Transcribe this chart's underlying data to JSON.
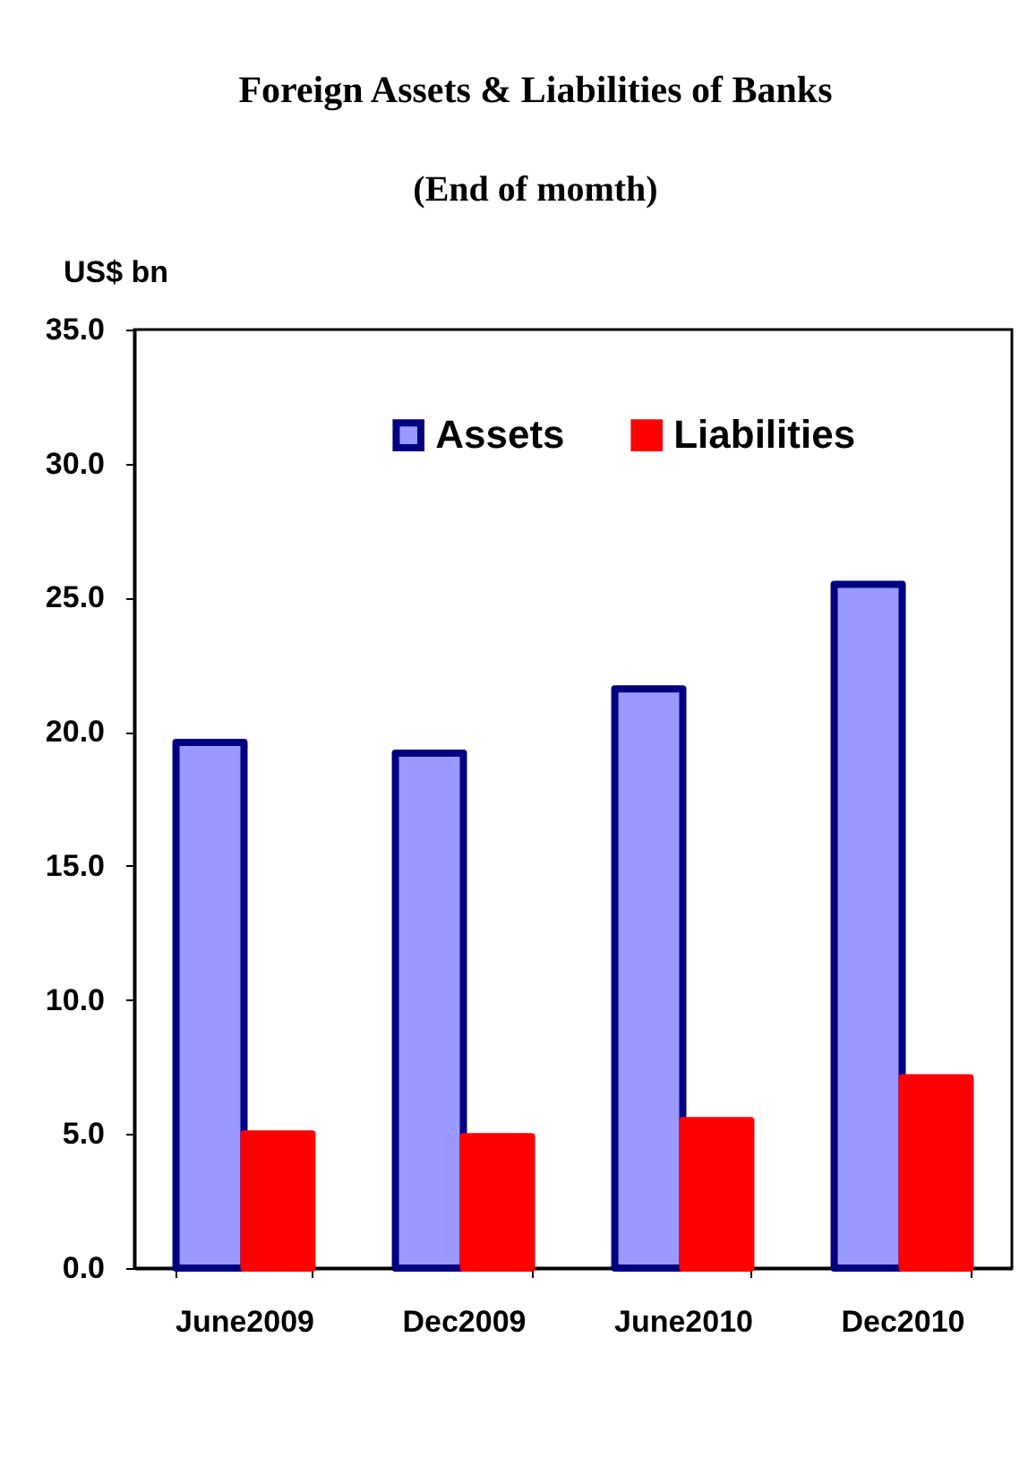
{
  "chart_data": {
    "type": "bar",
    "title": "Foreign Assets & Liabilities of Banks",
    "subtitle": "(End of momth)",
    "ylabel": "US$ bn",
    "categories": [
      "June2009",
      "Dec2009",
      "June2010",
      "Dec2010"
    ],
    "series": [
      {
        "name": "Assets",
        "color": "#9999ff",
        "values": [
          19.6,
          19.2,
          21.6,
          25.5
        ]
      },
      {
        "name": "Liabilities",
        "color": "#ff0000",
        "values": [
          5.0,
          4.9,
          5.5,
          7.1
        ]
      }
    ],
    "ylim": [
      0,
      35
    ],
    "yticks": [
      {
        "value": 0,
        "label": "0.0"
      },
      {
        "value": 5,
        "label": "5.0"
      },
      {
        "value": 10,
        "label": "10.0"
      },
      {
        "value": 15,
        "label": "15.0"
      },
      {
        "value": 20,
        "label": "20.0"
      },
      {
        "value": 25,
        "label": "25.0"
      },
      {
        "value": 30,
        "label": "30.0"
      },
      {
        "value": 35,
        "label": "35.0"
      }
    ],
    "grid": false,
    "legend": "top"
  }
}
